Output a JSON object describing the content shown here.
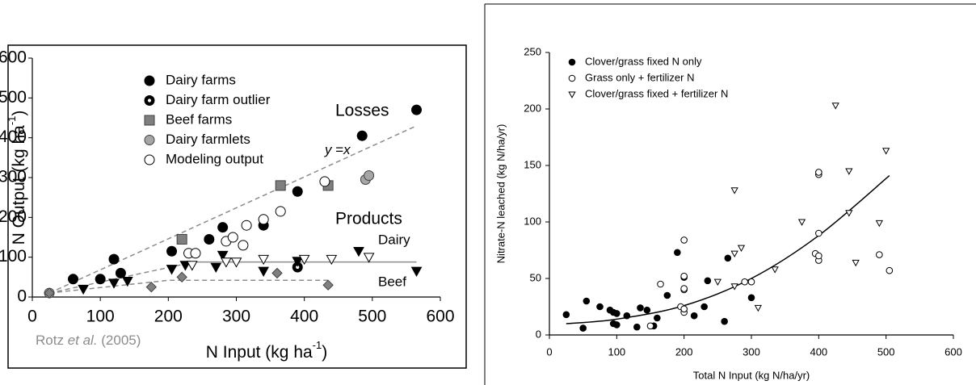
{
  "chart_data": [
    {
      "type": "scatter",
      "xlabel": {
        "text": "N Input (kg ha",
        "sup": "-1",
        "close": ")"
      },
      "ylabel": {
        "text": "N Output (kg ha",
        "sup": "-1",
        "close": ")"
      },
      "xlim": [
        0,
        600
      ],
      "ylim": [
        0,
        600
      ],
      "xticks": [
        0,
        100,
        200,
        300,
        400,
        500,
        600
      ],
      "yticks": [
        0,
        100,
        200,
        300,
        400,
        500,
        600
      ],
      "annotations": {
        "losses": "Losses",
        "yx": [
          "y",
          " =",
          "x"
        ],
        "products": "Products",
        "dairy": "Dairy",
        "beef": "Beef",
        "source": [
          "Rotz ",
          "et al.",
          " (2005)"
        ]
      },
      "series": [
        {
          "name": "Dairy farms",
          "marker": "circle",
          "color": "#000000",
          "edge": "#000000",
          "x": [
            60,
            100,
            120,
            130,
            205,
            260,
            280,
            340,
            390,
            485,
            565
          ],
          "y": [
            45,
            45,
            95,
            60,
            115,
            145,
            175,
            180,
            265,
            405,
            470
          ]
        },
        {
          "name": "Dairy farm outlier",
          "marker": "circle-dot",
          "color": "#000000",
          "edge": "#000000",
          "x": [
            390
          ],
          "y": [
            75
          ]
        },
        {
          "name": "Beef farms",
          "marker": "square",
          "color": "#7f7f7f",
          "edge": "#404040",
          "x": [
            220,
            365,
            435
          ],
          "y": [
            145,
            280,
            280
          ]
        },
        {
          "name": "Dairy farmlets",
          "marker": "circle",
          "color": "#a6a6a6",
          "edge": "#404040",
          "x": [
            25,
            490,
            495
          ],
          "y": [
            10,
            295,
            305
          ]
        },
        {
          "name": "Modeling output",
          "marker": "circle",
          "color": "#ffffff",
          "edge": "#000000",
          "x": [
            230,
            240,
            285,
            295,
            310,
            315,
            340,
            365,
            430
          ],
          "y": [
            110,
            110,
            140,
            150,
            130,
            180,
            195,
            215,
            290
          ]
        },
        {
          "marker": "triangle-down",
          "color": "#000000",
          "edge": "#000000",
          "x": [
            75,
            120,
            140,
            205,
            225,
            270,
            280,
            340,
            390,
            480,
            565
          ],
          "y": [
            20,
            35,
            40,
            70,
            80,
            75,
            105,
            65,
            90,
            115,
            65
          ]
        },
        {
          "marker": "triangle-down",
          "color": "#ffffff",
          "edge": "#000000",
          "x": [
            235,
            285,
            300,
            340,
            400,
            440,
            495
          ],
          "y": [
            80,
            88,
            88,
            95,
            95,
            95,
            100
          ]
        },
        {
          "marker": "diamond",
          "color": "#808080",
          "edge": "#404040",
          "x": [
            25,
            175,
            220,
            360,
            435
          ],
          "y": [
            10,
            25,
            50,
            60,
            30
          ]
        }
      ],
      "lines": [
        {
          "x": [
            25,
            565
          ],
          "y": [
            10,
            430
          ],
          "dash": true,
          "color": "#8c8c8c"
        },
        {
          "x": [
            25,
            230
          ],
          "y": [
            10,
            85
          ],
          "dash": true,
          "color": "#8c8c8c"
        },
        {
          "x": [
            230,
            565
          ],
          "y": [
            88,
            88
          ],
          "dash": false,
          "color": "#8c8c8c"
        },
        {
          "x": [
            25,
            200,
            440
          ],
          "y": [
            10,
            42,
            42
          ],
          "dash": true,
          "color": "#8c8c8c"
        }
      ]
    },
    {
      "type": "scatter",
      "xlabel": "Total N Input (kg N/ha/yr)",
      "ylabel": "Nitrate-N leached (kg N/ha/yr)",
      "xlim": [
        0,
        600
      ],
      "ylim": [
        0,
        250
      ],
      "xticks": [
        0,
        100,
        200,
        300,
        400,
        500,
        600
      ],
      "yticks": [
        0,
        50,
        100,
        150,
        200,
        250
      ],
      "series": [
        {
          "name": "Clover/grass fixed N only",
          "marker": "circle",
          "color": "#000000",
          "edge": "#000000",
          "x": [
            25,
            50,
            55,
            75,
            90,
            95,
            95,
            100,
            100,
            115,
            130,
            135,
            145,
            155,
            160,
            175,
            190,
            200,
            215,
            230,
            235,
            260,
            265,
            300
          ],
          "y": [
            18,
            6,
            30,
            25,
            22,
            10,
            20,
            9,
            19,
            17,
            7,
            24,
            22,
            8,
            15,
            35,
            73,
            51,
            17,
            25,
            48,
            12,
            68,
            33
          ]
        },
        {
          "name": "Grass only + fertilizer N",
          "marker": "circle",
          "color": "#ffffff",
          "edge": "#000000",
          "x": [
            150,
            165,
            195,
            200,
            200,
            200,
            200,
            200,
            200,
            290,
            300,
            395,
            400,
            400,
            400,
            400,
            400,
            490,
            505
          ],
          "y": [
            8,
            45,
            25,
            20,
            23,
            40,
            52,
            84,
            41,
            47,
            47,
            72,
            66,
            70,
            90,
            142,
            144,
            71,
            57
          ]
        },
        {
          "name": "Clover/grass fixed + fertilizer N",
          "marker": "triangle-down",
          "color": "#ffffff",
          "edge": "#000000",
          "x": [
            250,
            275,
            275,
            275,
            285,
            310,
            335,
            375,
            425,
            445,
            445,
            455,
            490,
            500
          ],
          "y": [
            47,
            128,
            43,
            72,
            77,
            24,
            58,
            100,
            203,
            108,
            145,
            64,
            99,
            163
          ]
        }
      ],
      "lines": [
        {
          "x": [
            25,
            100,
            200,
            300,
            400,
            505
          ],
          "y": [
            10,
            14,
            26,
            50,
            88,
            141
          ],
          "dash": false,
          "color": "#000000",
          "smooth": true
        }
      ]
    }
  ]
}
